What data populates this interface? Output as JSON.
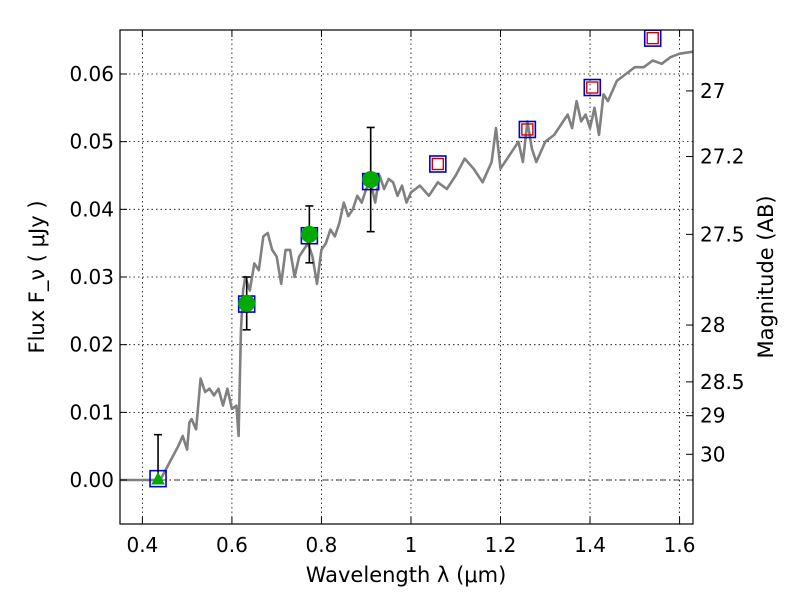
{
  "chart_data": {
    "type": "line",
    "xlabel": "Wavelength  λ (μm)",
    "ylabel": "Flux  F_ν  ( μJy )",
    "ylabel_right": "Magnitude (AB)",
    "xlim": [
      0.35,
      1.63
    ],
    "ylim": [
      -0.0065,
      0.0665
    ],
    "grid": true,
    "x_ticks": [
      0.4,
      0.6,
      0.8,
      1.0,
      1.2,
      1.4,
      1.6
    ],
    "x_tick_labels": [
      "0.4",
      "0.6",
      "0.8",
      "1",
      "1.2",
      "1.4",
      "1.6"
    ],
    "y_ticks": [
      0.0,
      0.01,
      0.02,
      0.03,
      0.04,
      0.05,
      0.06
    ],
    "y_tick_labels": [
      "0.00",
      "0.01",
      "0.02",
      "0.03",
      "0.04",
      "0.05",
      "0.06"
    ],
    "right_ticks": [
      {
        "label": "27",
        "flux": 0.0575
      },
      {
        "label": "27.2",
        "flux": 0.0478
      },
      {
        "label": "27.5",
        "flux": 0.0363
      },
      {
        "label": "28",
        "flux": 0.0229
      },
      {
        "label": "28.5",
        "flux": 0.0145
      },
      {
        "label": "29",
        "flux": 0.0095
      },
      {
        "label": "30",
        "flux": 0.0038
      }
    ],
    "series": [
      {
        "kind": "model_spectrum",
        "color": "#808080",
        "x": [
          0.35,
          0.44,
          0.46,
          0.48,
          0.49,
          0.5,
          0.505,
          0.51,
          0.52,
          0.53,
          0.54,
          0.55,
          0.56,
          0.57,
          0.58,
          0.59,
          0.6,
          0.61,
          0.615,
          0.62,
          0.625,
          0.63,
          0.64,
          0.65,
          0.66,
          0.67,
          0.68,
          0.69,
          0.7,
          0.71,
          0.72,
          0.73,
          0.74,
          0.75,
          0.76,
          0.77,
          0.78,
          0.79,
          0.8,
          0.81,
          0.82,
          0.83,
          0.84,
          0.85,
          0.86,
          0.87,
          0.88,
          0.89,
          0.9,
          0.91,
          0.92,
          0.93,
          0.94,
          0.95,
          0.96,
          0.97,
          0.98,
          0.99,
          1.0,
          1.02,
          1.04,
          1.06,
          1.08,
          1.1,
          1.12,
          1.14,
          1.16,
          1.18,
          1.19,
          1.2,
          1.22,
          1.24,
          1.25,
          1.26,
          1.27,
          1.28,
          1.3,
          1.32,
          1.34,
          1.35,
          1.36,
          1.37,
          1.38,
          1.39,
          1.4,
          1.41,
          1.42,
          1.43,
          1.44,
          1.46,
          1.48,
          1.5,
          1.52,
          1.54,
          1.56,
          1.58,
          1.6,
          1.63
        ],
        "y": [
          0.0,
          0.0,
          0.0025,
          0.005,
          0.0065,
          0.0045,
          0.0085,
          0.009,
          0.0075,
          0.015,
          0.013,
          0.0135,
          0.0125,
          0.0135,
          0.011,
          0.0135,
          0.0105,
          0.011,
          0.0065,
          0.022,
          0.028,
          0.03,
          0.028,
          0.032,
          0.031,
          0.036,
          0.0365,
          0.034,
          0.033,
          0.029,
          0.034,
          0.034,
          0.03,
          0.033,
          0.034,
          0.035,
          0.033,
          0.029,
          0.034,
          0.035,
          0.037,
          0.036,
          0.038,
          0.041,
          0.039,
          0.04,
          0.042,
          0.041,
          0.043,
          0.044,
          0.041,
          0.045,
          0.043,
          0.0445,
          0.044,
          0.042,
          0.0435,
          0.041,
          0.0425,
          0.0435,
          0.042,
          0.044,
          0.043,
          0.045,
          0.0475,
          0.046,
          0.044,
          0.047,
          0.052,
          0.046,
          0.048,
          0.05,
          0.047,
          0.053,
          0.049,
          0.047,
          0.05,
          0.051,
          0.053,
          0.054,
          0.052,
          0.056,
          0.053,
          0.054,
          0.052,
          0.055,
          0.051,
          0.057,
          0.056,
          0.059,
          0.06,
          0.061,
          0.061,
          0.062,
          0.0615,
          0.0625,
          0.063,
          0.0633
        ]
      },
      {
        "kind": "observed_flux",
        "marker": "circle",
        "color": "#00aa00",
        "x": [
          0.633,
          0.773,
          0.91
        ],
        "y": [
          0.0261,
          0.0363,
          0.0444
        ],
        "yerr": [
          0.0039,
          0.0042,
          0.0077
        ]
      },
      {
        "kind": "upper_limit",
        "marker": "triangle",
        "color": "#00aa00",
        "x": [
          0.435
        ],
        "y": [
          0.0
        ],
        "yerr_up": [
          0.0067
        ]
      },
      {
        "kind": "model_photometry",
        "marker": "open-square",
        "color": "#0000cc",
        "x": [
          0.435,
          0.633,
          0.773,
          0.91,
          1.06,
          1.26,
          1.405,
          1.54
        ],
        "y": [
          0.0002,
          0.026,
          0.0361,
          0.0441,
          0.0467,
          0.0518,
          0.058,
          0.0653
        ]
      },
      {
        "kind": "model_photometry_ir",
        "marker": "open-square",
        "color": "#cc0000",
        "x": [
          1.06,
          1.26,
          1.405,
          1.54
        ],
        "y": [
          0.0467,
          0.0518,
          0.058,
          0.0653
        ]
      }
    ]
  }
}
